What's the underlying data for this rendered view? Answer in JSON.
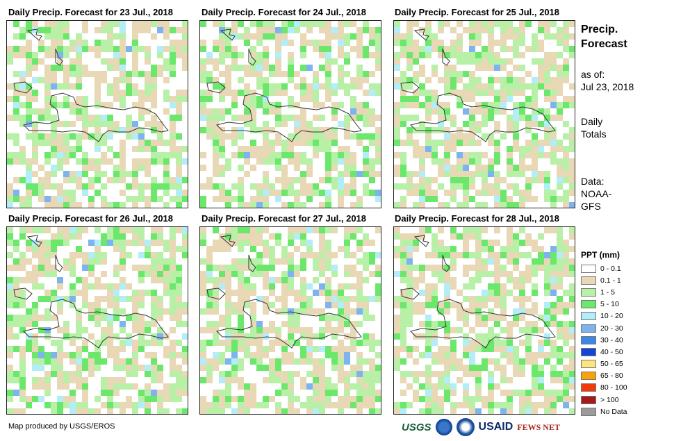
{
  "panels": [
    {
      "title": "Daily Precip. Forecast for 23 Jul., 2018"
    },
    {
      "title": "Daily Precip. Forecast for 24 Jul., 2018"
    },
    {
      "title": "Daily Precip. Forecast for 25 Jul., 2018"
    },
    {
      "title": "Daily Precip. Forecast for 26 Jul., 2018"
    },
    {
      "title": "Daily Precip. Forecast for 27 Jul., 2018"
    },
    {
      "title": "Daily Precip. Forecast for 28 Jul., 2018"
    }
  ],
  "side": {
    "title_line1": "Precip.",
    "title_line2": "Forecast",
    "asof_label": "as of:",
    "asof_date": "Jul 23, 2018",
    "totals_line1": "Daily",
    "totals_line2": "Totals",
    "data_line1": "Data:",
    "data_line2": "NOAA-",
    "data_line3": "GFS"
  },
  "legend": {
    "title": "PPT (mm)",
    "items": [
      {
        "label": "0 - 0.1",
        "color": "#ffffff"
      },
      {
        "label": "0.1 - 1",
        "color": "#e8d8b5"
      },
      {
        "label": "1 - 5",
        "color": "#b8f0a8"
      },
      {
        "label": "5 - 10",
        "color": "#6be86b"
      },
      {
        "label": "10 - 20",
        "color": "#b3eef8"
      },
      {
        "label": "20 - 30",
        "color": "#7db4f0"
      },
      {
        "label": "30 - 40",
        "color": "#3d87e8"
      },
      {
        "label": "40 - 50",
        "color": "#1446d6"
      },
      {
        "label": "50 - 65",
        "color": "#fbe57e"
      },
      {
        "label": "65 - 80",
        "color": "#f9a10b"
      },
      {
        "label": "80 - 100",
        "color": "#f43a0b"
      },
      {
        "label": "> 100",
        "color": "#a41b1b"
      },
      {
        "label": "No Data",
        "color": "#9b9b9b"
      }
    ]
  },
  "credit": "Map produced by USGS/EROS",
  "logos": {
    "usgs": "USGS",
    "usaid": "USAID",
    "fews": "FEWS NET"
  }
}
